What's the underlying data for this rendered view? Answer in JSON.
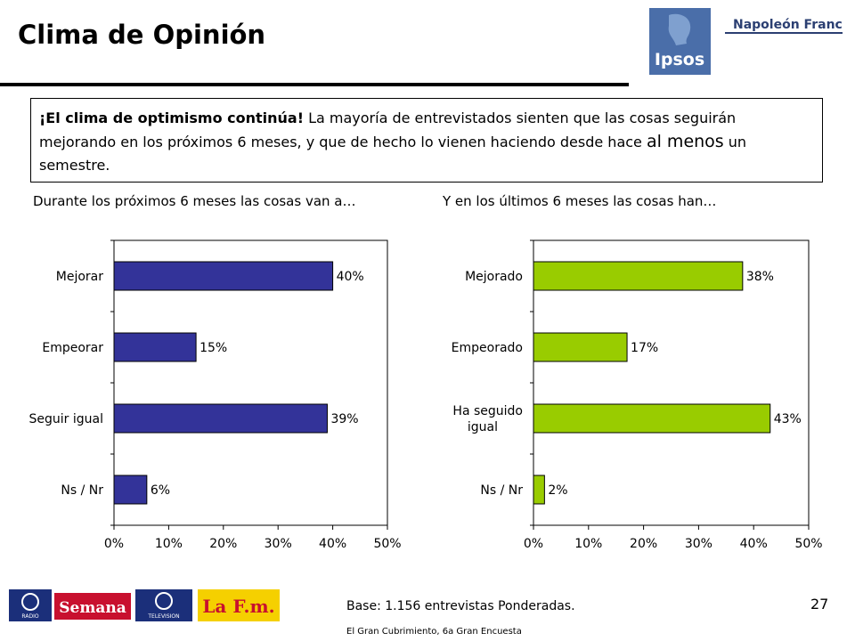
{
  "slide": {
    "title": "Clima de Opinión",
    "logos": {
      "ipsos": "Ipsos",
      "napoleon": "Napoleón Franco"
    },
    "callout": {
      "lead": "¡El clima de optimismo continúa!",
      "text1": " La mayoría de entrevistados sienten que las cosas seguirán mejorando en los próximos 6 meses, y que de hecho lo vienen haciendo desde hace ",
      "big": "al menos",
      "text2": " un semestre."
    },
    "footer": {
      "base": "Base: 1.156 entrevistas Ponderadas.",
      "source": "El Gran Cubrimiento, 6a Gran Encuesta",
      "page": "27",
      "logo_semana": "Semana",
      "logo_lafm": "La F.m.",
      "logo_rcn_radio": "RADIO",
      "logo_rcn_tv": "TELEVISION"
    },
    "colors": {
      "left_bars": "#333399",
      "right_bars": "#99cc00"
    }
  },
  "chart_data": [
    {
      "type": "bar",
      "orientation": "horizontal",
      "title": "Durante los próximos 6 meses las cosas van a…",
      "categories": [
        "Mejorar",
        "Empeorar",
        "Seguir igual",
        "Ns / Nr"
      ],
      "values": [
        40,
        15,
        39,
        6
      ],
      "value_labels": [
        "40%",
        "15%",
        "39%",
        "6%"
      ],
      "xlim": [
        0,
        50
      ],
      "xticks": [
        "0%",
        "10%",
        "20%",
        "30%",
        "40%",
        "50%"
      ],
      "grid": false,
      "color": "#333399"
    },
    {
      "type": "bar",
      "orientation": "horizontal",
      "title": "Y en los últimos 6 meses las cosas han…",
      "categories": [
        "Mejorado",
        "Empeorado",
        "Ha seguido igual",
        "Ns / Nr"
      ],
      "values": [
        38,
        17,
        43,
        2
      ],
      "value_labels": [
        "38%",
        "17%",
        "43%",
        "2%"
      ],
      "xlim": [
        0,
        50
      ],
      "xticks": [
        "0%",
        "10%",
        "20%",
        "30%",
        "40%",
        "50%"
      ],
      "grid": false,
      "color": "#99cc00"
    }
  ]
}
